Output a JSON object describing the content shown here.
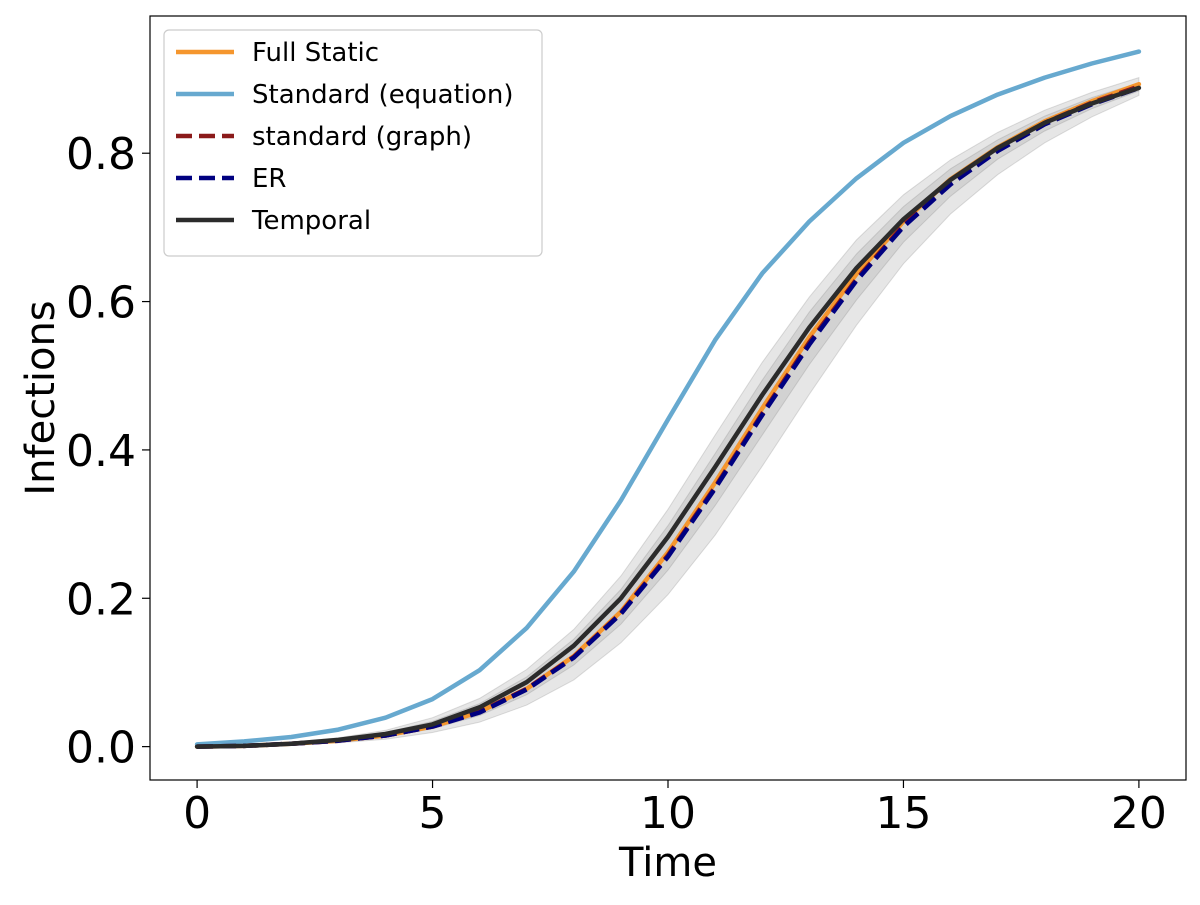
{
  "chart_data": {
    "type": "line",
    "title": "",
    "xlabel": "Time",
    "ylabel": "Infections",
    "xlim": [
      -1,
      21
    ],
    "ylim": [
      -0.045,
      0.985
    ],
    "xticks": [
      0,
      5,
      10,
      15,
      20
    ],
    "xtick_labels": [
      "0",
      "5",
      "10",
      "15",
      "20"
    ],
    "yticks": [
      0.0,
      0.2,
      0.4,
      0.6,
      0.8
    ],
    "ytick_labels": [
      "0.0",
      "0.2",
      "0.4",
      "0.6",
      "0.8"
    ],
    "grid": false,
    "legend_position": "top-left",
    "x": [
      0,
      1,
      2,
      3,
      4,
      5,
      6,
      7,
      8,
      9,
      10,
      11,
      12,
      13,
      14,
      15,
      16,
      17,
      18,
      19,
      20
    ],
    "series": [
      {
        "name": "Full Static",
        "color": "#f5962e",
        "style": "solid",
        "values": [
          0.0,
          0.001,
          0.004,
          0.008,
          0.015,
          0.027,
          0.047,
          0.078,
          0.122,
          0.182,
          0.262,
          0.356,
          0.456,
          0.552,
          0.637,
          0.708,
          0.765,
          0.808,
          0.843,
          0.87,
          0.893
        ]
      },
      {
        "name": "Standard (equation)",
        "color": "#67a9cf",
        "style": "solid",
        "values": [
          0.003,
          0.007,
          0.013,
          0.023,
          0.039,
          0.064,
          0.103,
          0.16,
          0.236,
          0.332,
          0.441,
          0.548,
          0.638,
          0.708,
          0.766,
          0.814,
          0.85,
          0.879,
          0.902,
          0.921,
          0.937
        ]
      },
      {
        "name": "standard (graph)",
        "color": "#8b1a1a",
        "style": "dashed",
        "values": [
          0.0,
          0.001,
          0.004,
          0.008,
          0.015,
          0.027,
          0.047,
          0.078,
          0.121,
          0.18,
          0.258,
          0.35,
          0.449,
          0.545,
          0.63,
          0.703,
          0.76,
          0.805,
          0.841,
          0.868,
          0.89
        ]
      },
      {
        "name": "ER",
        "color": "#000080",
        "style": "dashed",
        "values": [
          0.0,
          0.001,
          0.004,
          0.008,
          0.015,
          0.027,
          0.046,
          0.077,
          0.12,
          0.179,
          0.256,
          0.348,
          0.447,
          0.542,
          0.628,
          0.701,
          0.758,
          0.803,
          0.839,
          0.866,
          0.888
        ]
      },
      {
        "name": "Temporal",
        "color": "#2b2b2b",
        "style": "solid",
        "values": [
          0.0,
          0.001,
          0.004,
          0.009,
          0.017,
          0.03,
          0.053,
          0.087,
          0.136,
          0.2,
          0.283,
          0.377,
          0.474,
          0.565,
          0.645,
          0.711,
          0.764,
          0.807,
          0.841,
          0.867,
          0.888
        ]
      }
    ],
    "bands": {
      "color": "#808080",
      "ranges": [
        {
          "lower": [
            0.0,
            0.0,
            0.002,
            0.005,
            0.01,
            0.019,
            0.033,
            0.056,
            0.09,
            0.14,
            0.205,
            0.285,
            0.378,
            0.475,
            0.568,
            0.651,
            0.718,
            0.771,
            0.814,
            0.849,
            0.878
          ],
          "upper": [
            0.0,
            0.002,
            0.006,
            0.012,
            0.022,
            0.039,
            0.065,
            0.104,
            0.158,
            0.23,
            0.32,
            0.42,
            0.518,
            0.606,
            0.683,
            0.744,
            0.791,
            0.828,
            0.858,
            0.882,
            0.902
          ]
        },
        {
          "lower": [
            0.0,
            0.001,
            0.003,
            0.007,
            0.013,
            0.024,
            0.042,
            0.07,
            0.11,
            0.165,
            0.238,
            0.325,
            0.42,
            0.515,
            0.602,
            0.68,
            0.742,
            0.792,
            0.83,
            0.86,
            0.884
          ],
          "upper": [
            0.0,
            0.002,
            0.005,
            0.01,
            0.019,
            0.034,
            0.058,
            0.094,
            0.145,
            0.212,
            0.298,
            0.395,
            0.494,
            0.586,
            0.664,
            0.728,
            0.779,
            0.818,
            0.85,
            0.875,
            0.895
          ]
        }
      ]
    }
  }
}
